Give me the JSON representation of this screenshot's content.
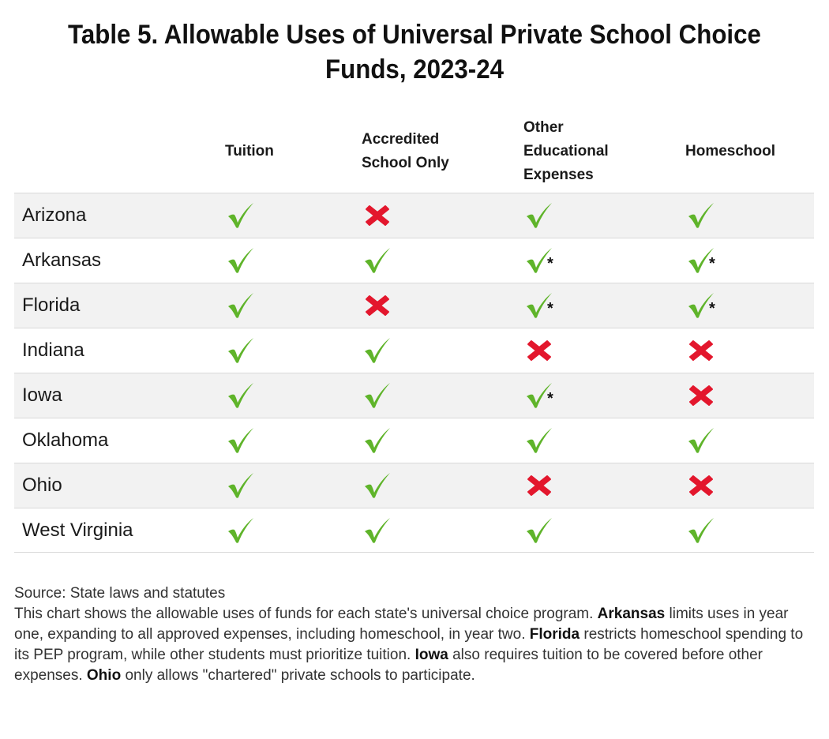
{
  "title": "Table 5. Allowable Uses of Universal Private School Choice Funds, 2023-24",
  "columns": [
    {
      "label": "Tuition"
    },
    {
      "label": "Accredited\nSchool Only"
    },
    {
      "label": "Other\nEducational\nExpenses"
    },
    {
      "label": "Homeschool"
    }
  ],
  "rows": [
    {
      "state": "Arizona",
      "values": [
        "yes",
        "no",
        "yes",
        "yes"
      ]
    },
    {
      "state": "Arkansas",
      "values": [
        "yes",
        "yes",
        "yes*",
        "yes*"
      ]
    },
    {
      "state": "Florida",
      "values": [
        "yes",
        "no",
        "yes*",
        "yes*"
      ]
    },
    {
      "state": "Indiana",
      "values": [
        "yes",
        "yes",
        "no",
        "no"
      ]
    },
    {
      "state": "Iowa",
      "values": [
        "yes",
        "yes",
        "yes*",
        "no"
      ]
    },
    {
      "state": "Oklahoma",
      "values": [
        "yes",
        "yes",
        "yes",
        "yes"
      ]
    },
    {
      "state": "Ohio",
      "values": [
        "yes",
        "yes",
        "no",
        "no"
      ]
    },
    {
      "state": "West Virginia",
      "values": [
        "yes",
        "yes",
        "yes",
        "yes"
      ]
    }
  ],
  "colors": {
    "check": "#5fb42a",
    "cross": "#e3172d",
    "row_shade": "#f2f2f2"
  },
  "icons": {
    "yes": "check-icon",
    "no": "x-icon",
    "footnote": "asterisk"
  },
  "source": "Source: State laws and statutes",
  "note": {
    "p1": "This chart shows the allowable uses of funds for each state's universal choice program. ",
    "b1": "Arkansas",
    "p2": " limits uses in year one, expanding to all approved expenses, including homeschool, in year two. ",
    "b2": "Florida",
    "p3": " restricts homeschool spending to its PEP program, while other students must prioritize tuition. ",
    "b3": "Iowa",
    "p4": " also requires tuition to be covered before other expenses. ",
    "b4": "Ohio",
    "p5": " only allows \"chartered\" private schools to participate."
  }
}
